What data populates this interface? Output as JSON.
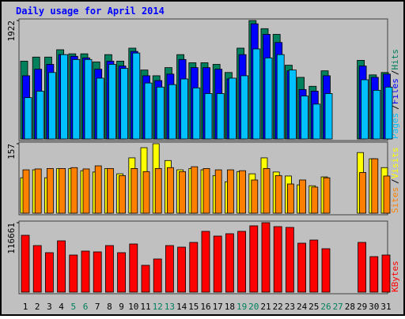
{
  "chart_data": [
    {
      "type": "bar",
      "title": "Daily usage for April 2014",
      "ylim": [
        0,
        1922
      ],
      "yticks": [
        1922
      ],
      "legend_separator": "/",
      "series": [
        {
          "name": "Hits",
          "color": "#00805c",
          "values": [
            1263,
            1329,
            1329,
            1448,
            1382,
            1382,
            1250,
            1369,
            1263,
            1474,
            1119,
            1026,
            1158,
            1369,
            1237,
            1237,
            1211,
            1079,
            1474,
            1922,
            1790,
            1698,
            1197,
            1000,
            855,
            1106,
            null,
            null,
            1276,
            1040,
            1079
          ]
        },
        {
          "name": "Files",
          "color": "#0000ff",
          "values": [
            1026,
            1132,
            1211,
            1369,
            1342,
            1316,
            1132,
            1263,
            1184,
            1421,
            1026,
            948,
            1053,
            1290,
            1158,
            1158,
            1132,
            974,
            1369,
            1869,
            1698,
            1566,
            1105,
            803,
            776,
            1026,
            null,
            null,
            1184,
            1000,
            1053
          ]
        },
        {
          "name": "Pages",
          "color": "#00c0ff",
          "values": [
            671,
            776,
            1079,
            1369,
            1290,
            1290,
            987,
            1211,
            1145,
            1395,
            908,
            842,
            882,
            974,
            829,
            737,
            737,
            987,
            1026,
            1461,
            1316,
            1369,
            1119,
            697,
            566,
            737,
            null,
            null,
            961,
            790,
            842
          ]
        }
      ]
    },
    {
      "type": "bar",
      "ylim": [
        0,
        157
      ],
      "yticks": [
        157
      ],
      "series": [
        {
          "name": "Visits",
          "color": "#ffff00",
          "values": [
            80,
            98,
            80,
            101,
            101,
            96,
            93,
            101,
            89,
            125,
            148,
            157,
            119,
            98,
            101,
            98,
            85,
            71,
            94,
            89,
            125,
            93,
            84,
            64,
            62,
            82,
            null,
            null,
            137,
            123,
            103
          ]
        },
        {
          "name": "Sites",
          "color": "#ff8000",
          "values": [
            98,
            100,
            101,
            101,
            103,
            100,
            107,
            101,
            85,
            101,
            94,
            101,
            103,
            94,
            105,
            101,
            98,
            98,
            96,
            75,
            101,
            85,
            66,
            75,
            59,
            80,
            null,
            null,
            92,
            123,
            84
          ]
        }
      ]
    },
    {
      "type": "bar",
      "ylim": [
        0,
        116661
      ],
      "yticks": [
        116661
      ],
      "categories": [
        "1",
        "2",
        "3",
        "4",
        "5",
        "6",
        "7",
        "8",
        "9",
        "10",
        "11",
        "12",
        "13",
        "14",
        "15",
        "16",
        "17",
        "18",
        "19",
        "20",
        "21",
        "22",
        "23",
        "24",
        "25",
        "26",
        "27",
        "28",
        "29",
        "30",
        "31"
      ],
      "category_colors": [
        "#000000",
        "#000000",
        "#000000",
        "#000000",
        "#00805c",
        "#00805c",
        "#000000",
        "#000000",
        "#000000",
        "#000000",
        "#000000",
        "#00805c",
        "#00805c",
        "#000000",
        "#000000",
        "#000000",
        "#000000",
        "#000000",
        "#00805c",
        "#00805c",
        "#000000",
        "#000000",
        "#000000",
        "#000000",
        "#000000",
        "#00805c",
        "#00805c",
        "#000000",
        "#000000",
        "#000000",
        "#000000"
      ],
      "series": [
        {
          "name": "KBytes",
          "color": "#ff0000",
          "values": [
            95472,
            78234,
            66300,
            86190,
            62322,
            68952,
            67626,
            78234,
            66300,
            80886,
            45084,
            55692,
            78234,
            75582,
            83538,
            102102,
            94146,
            98124,
            102102,
            111384,
            116661,
            110058,
            108732,
            82212,
            87516,
            72930,
            null,
            null,
            83538,
            59670,
            62322
          ]
        }
      ]
    }
  ]
}
